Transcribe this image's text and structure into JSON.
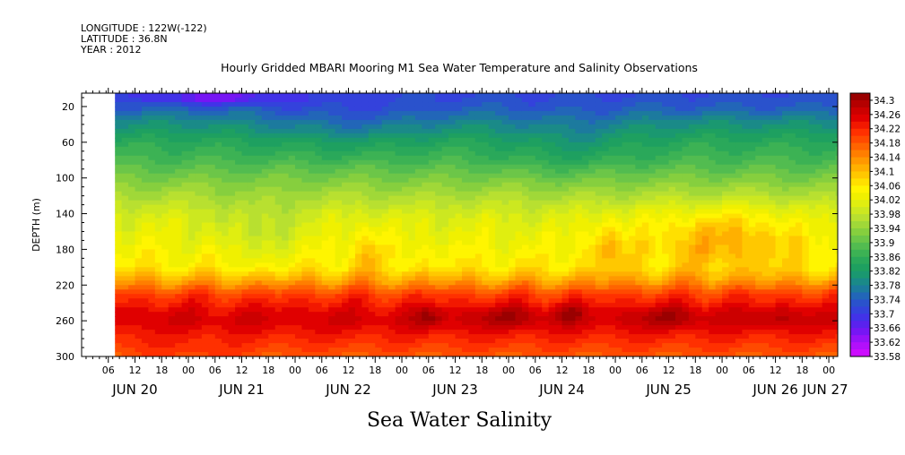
{
  "header": {
    "longitude": "LONGITUDE : 122W(-122)",
    "latitude": "LATITUDE : 36.8N",
    "year": "YEAR : 2012"
  },
  "chart_data": {
    "type": "heatmap",
    "title": "Hourly Gridded MBARI Mooring M1 Sea Water Temperature and Salinity Observations",
    "ylabel": "DEPTH (m)",
    "bottom_label": "Sea Water Salinity",
    "ylim": [
      300,
      5
    ],
    "y_ticks": [
      20,
      60,
      100,
      140,
      180,
      220,
      260,
      300
    ],
    "x_hour_ticks": [
      {
        "hours": 6,
        "label": "06"
      },
      {
        "hours": 12,
        "label": "12"
      },
      {
        "hours": 18,
        "label": "18"
      },
      {
        "hours": 24,
        "label": "00"
      },
      {
        "hours": 30,
        "label": "06"
      },
      {
        "hours": 36,
        "label": "12"
      },
      {
        "hours": 42,
        "label": "18"
      },
      {
        "hours": 48,
        "label": "00"
      },
      {
        "hours": 54,
        "label": "06"
      },
      {
        "hours": 60,
        "label": "12"
      },
      {
        "hours": 66,
        "label": "18"
      },
      {
        "hours": 72,
        "label": "00"
      },
      {
        "hours": 78,
        "label": "06"
      },
      {
        "hours": 84,
        "label": "12"
      },
      {
        "hours": 90,
        "label": "18"
      },
      {
        "hours": 96,
        "label": "00"
      },
      {
        "hours": 102,
        "label": "06"
      },
      {
        "hours": 108,
        "label": "12"
      },
      {
        "hours": 114,
        "label": "18"
      },
      {
        "hours": 120,
        "label": "00"
      },
      {
        "hours": 126,
        "label": "06"
      },
      {
        "hours": 132,
        "label": "12"
      },
      {
        "hours": 138,
        "label": "18"
      },
      {
        "hours": 144,
        "label": "00"
      },
      {
        "hours": 150,
        "label": "06"
      },
      {
        "hours": 156,
        "label": "12"
      },
      {
        "hours": 162,
        "label": "18"
      },
      {
        "hours": 168,
        "label": "00"
      }
    ],
    "x_day_labels": [
      {
        "hours": 12,
        "label": "JUN 20"
      },
      {
        "hours": 36,
        "label": "JUN 21"
      },
      {
        "hours": 60,
        "label": "JUN 22"
      },
      {
        "hours": 84,
        "label": "JUN 23"
      },
      {
        "hours": 108,
        "label": "JUN 24"
      },
      {
        "hours": 132,
        "label": "JUN 25"
      },
      {
        "hours": 156,
        "label": "JUN 26"
      },
      {
        "hours": 168,
        "label": "JUN 27"
      }
    ],
    "data_start_hours": 7.5,
    "colorbar": {
      "min": 33.58,
      "max": 34.32,
      "labels": [
        "34.3",
        "34.26",
        "34.22",
        "34.18",
        "34.14",
        "34.1",
        "34.06",
        "34.02",
        "33.98",
        "33.94",
        "33.9",
        "33.86",
        "33.82",
        "33.78",
        "33.74",
        "33.7",
        "33.66",
        "33.62",
        "33.58"
      ],
      "colors": [
        "#9a0000",
        "#b40000",
        "#cc0000",
        "#e00000",
        "#f21800",
        "#ff3000",
        "#ff4a00",
        "#ff6400",
        "#ff7e00",
        "#ff9800",
        "#ffb000",
        "#ffc800",
        "#ffe000",
        "#fff500",
        "#f0f000",
        "#e0ee10",
        "#cce820",
        "#b8e030",
        "#a0d838",
        "#86cf3e",
        "#6cc648",
        "#52bc50",
        "#3cb254",
        "#2aa85a",
        "#1ea060",
        "#1a9870",
        "#1a8a88",
        "#1c7a9e",
        "#2266b8",
        "#2a52cc",
        "#3442dc",
        "#4232e8",
        "#5a22ee",
        "#7616f4",
        "#9612f8",
        "#b210fb",
        "#cc0cff"
      ]
    },
    "profile": [
      {
        "depth": 5,
        "value": 33.72
      },
      {
        "depth": 20,
        "value": 33.74
      },
      {
        "depth": 40,
        "value": 33.8
      },
      {
        "depth": 60,
        "value": 33.85
      },
      {
        "depth": 80,
        "value": 33.88
      },
      {
        "depth": 100,
        "value": 33.92
      },
      {
        "depth": 120,
        "value": 33.96
      },
      {
        "depth": 140,
        "value": 34.0
      },
      {
        "depth": 160,
        "value": 34.02
      },
      {
        "depth": 180,
        "value": 34.04
      },
      {
        "depth": 200,
        "value": 34.06
      },
      {
        "depth": 215,
        "value": 34.12
      },
      {
        "depth": 230,
        "value": 34.2
      },
      {
        "depth": 250,
        "value": 34.25
      },
      {
        "depth": 260,
        "value": 34.26
      },
      {
        "depth": 275,
        "value": 34.23
      },
      {
        "depth": 300,
        "value": 34.18
      }
    ],
    "anomalies": [
      {
        "hours": 78,
        "depth": 255,
        "width_hours": 6,
        "height_m": 25,
        "delta": 0.05
      },
      {
        "hours": 96,
        "depth": 255,
        "width_hours": 18,
        "height_m": 25,
        "delta": 0.04
      },
      {
        "hours": 110,
        "depth": 252,
        "width_hours": 6,
        "height_m": 22,
        "delta": 0.05
      },
      {
        "hours": 132,
        "depth": 255,
        "width_hours": 18,
        "height_m": 25,
        "delta": 0.04
      },
      {
        "hours": 156,
        "depth": 255,
        "width_hours": 12,
        "height_m": 25,
        "delta": 0.03
      },
      {
        "hours": 144,
        "depth": 165,
        "width_hours": 36,
        "height_m": 70,
        "delta": 0.08
      },
      {
        "hours": 118,
        "depth": 175,
        "width_hours": 8,
        "height_m": 60,
        "delta": 0.06
      },
      {
        "hours": 64,
        "depth": 180,
        "width_hours": 10,
        "height_m": 60,
        "delta": 0.04
      },
      {
        "hours": 40,
        "depth": 160,
        "width_hours": 20,
        "height_m": 80,
        "delta": -0.04
      },
      {
        "hours": 60,
        "depth": 40,
        "width_hours": 40,
        "height_m": 60,
        "delta": -0.04
      },
      {
        "hours": 110,
        "depth": 60,
        "width_hours": 30,
        "height_m": 70,
        "delta": -0.04
      },
      {
        "hours": 30,
        "depth": 10,
        "width_hours": 30,
        "height_m": 15,
        "delta": -0.08
      },
      {
        "hours": 24,
        "depth": 300,
        "width_hours": 24,
        "height_m": 40,
        "delta": 0.02
      }
    ]
  }
}
